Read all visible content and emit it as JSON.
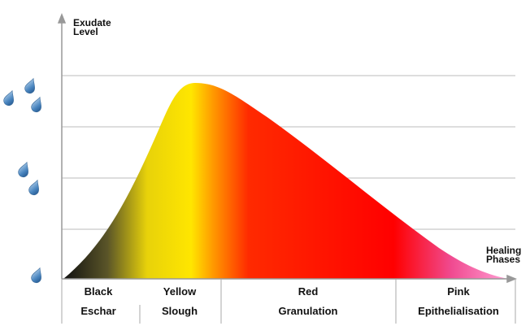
{
  "y_axis_label": [
    "Exudate",
    "Level"
  ],
  "x_axis_label": [
    "Healing",
    "Phases"
  ],
  "phases": [
    {
      "name": "Black",
      "stage": "Eschar"
    },
    {
      "name": "Yellow",
      "stage": "Slough"
    },
    {
      "name": "Red",
      "stage": "Granulation"
    },
    {
      "name": "Pink",
      "stage": "Epithelialisation"
    }
  ]
}
